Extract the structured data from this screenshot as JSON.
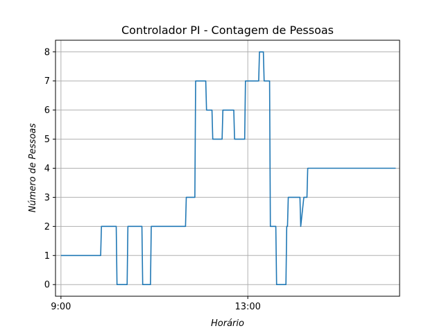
{
  "chart_data": {
    "type": "line",
    "title": "Controlador PI - Contagem de Pessoas",
    "xlabel": "Horário",
    "ylabel": "Número de Pessoas",
    "x_axis_type": "time",
    "xlim": [
      "8:53",
      "16:15"
    ],
    "ylim": [
      -0.4,
      8.4
    ],
    "x_ticks": [
      "9:00",
      "13:00"
    ],
    "y_ticks": [
      0,
      1,
      2,
      3,
      4,
      5,
      6,
      7,
      8
    ],
    "grid": true,
    "line_color": "#1f77b4",
    "series": [
      {
        "x": [
          "9:00",
          "9:51",
          "9:52",
          "10:11",
          "10:12",
          "10:25",
          "10:26",
          "10:44",
          "10:45",
          "10:55",
          "10:56",
          "11:40",
          "11:41",
          "11:52",
          "11:53",
          "12:06",
          "12:07",
          "12:14",
          "12:15",
          "12:27",
          "12:28",
          "12:42",
          "12:43",
          "12:56",
          "12:57",
          "13:14",
          "13:15",
          "13:20",
          "13:21",
          "13:28",
          "13:29",
          "13:36",
          "13:37",
          "13:49",
          "13:50",
          "13:51",
          "13:52",
          "14:07",
          "14:08",
          "14:12",
          "14:13",
          "14:16",
          "14:17",
          "14:21",
          "14:22",
          "16:10"
        ],
        "values": [
          1,
          1,
          2,
          2,
          0,
          0,
          2,
          2,
          0,
          0,
          2,
          2,
          3,
          3,
          7,
          7,
          6,
          6,
          5,
          5,
          6,
          6,
          5,
          5,
          7,
          7,
          8,
          8,
          7,
          7,
          2,
          2,
          0,
          0,
          2,
          2,
          3,
          3,
          2,
          3,
          3,
          3,
          4,
          4,
          4,
          4
        ]
      }
    ]
  }
}
